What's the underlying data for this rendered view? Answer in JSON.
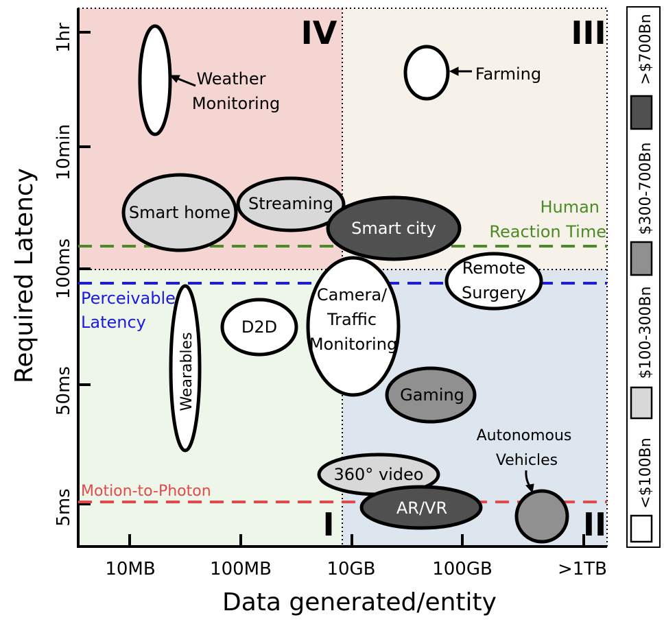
{
  "chart_data": {
    "type": "scatter",
    "xlabel": "Data generated/entity",
    "ylabel": "Required Latency",
    "x_ticks": [
      "10MB",
      "100MB",
      "10GB",
      "100GB",
      ">1TB"
    ],
    "y_ticks": [
      "1hr",
      "10min",
      "100ms",
      "50ms",
      "5ms"
    ],
    "quadrants": [
      {
        "label": "IV",
        "color": "#f4d5d2"
      },
      {
        "label": "III",
        "color": "#f6f2ea"
      },
      {
        "label": "I",
        "color": "#eef6ea"
      },
      {
        "label": "II",
        "color": "#dde5ef"
      }
    ],
    "thresholds": [
      {
        "label": "Human Reaction Time",
        "label_lines": [
          "Human",
          "Reaction Time"
        ],
        "color": "#4b8a24"
      },
      {
        "label": "Perceivable Latency",
        "label_lines": [
          "Perceivable",
          "Latency"
        ],
        "color": "#1a1ae6"
      },
      {
        "label": "Motion-to-Photon",
        "label_lines": [
          "Motion-to-Photon"
        ],
        "color": "#e04a4a"
      }
    ],
    "legend": {
      "title_position": "right",
      "items": [
        {
          "label": "<$100Bn",
          "color": "#ffffff"
        },
        {
          "label": "$100-300Bn",
          "color": "#d8d8d8"
        },
        {
          "label": "$300-700Bn",
          "color": "#909090"
        },
        {
          "label": ">$700Bn",
          "color": "#505050"
        }
      ]
    },
    "applications": [
      {
        "name": "Weather Monitoring",
        "label_lines": [
          "Weather",
          "Monitoring"
        ],
        "x": "10MB",
        "y": "1hr",
        "market": "<$100Bn"
      },
      {
        "name": "Farming",
        "label_lines": [
          "Farming"
        ],
        "x": "100GB",
        "y": "1hr",
        "market": "<$100Bn"
      },
      {
        "name": "Smart home",
        "label_lines": [
          "Smart home"
        ],
        "x": "10MB",
        "y": "10min-100ms",
        "market": "$100-300Bn"
      },
      {
        "name": "Streaming",
        "label_lines": [
          "Streaming"
        ],
        "x": "100MB",
        "y": "10min-100ms",
        "market": "$100-300Bn"
      },
      {
        "name": "Smart city",
        "label_lines": [
          "Smart city"
        ],
        "x": "10GB",
        "y": "10min-100ms",
        "market": ">$700Bn"
      },
      {
        "name": "Remote Surgery",
        "label_lines": [
          "Remote",
          "Surgery"
        ],
        "x": "100GB",
        "y": "100ms",
        "market": "<$100Bn"
      },
      {
        "name": "Camera/Traffic Monitoring",
        "label_lines": [
          "Camera/",
          "Traffic",
          "Monitoring"
        ],
        "x": "10GB",
        "y": "100ms-50ms",
        "market": "<$100Bn"
      },
      {
        "name": "D2D",
        "label_lines": [
          "D2D"
        ],
        "x": "100MB",
        "y": "100ms-50ms",
        "market": "<$100Bn"
      },
      {
        "name": "Wearables",
        "label_lines": [
          "Wearables"
        ],
        "x": "10MB-100MB",
        "y": "100ms-5ms",
        "market": "<$100Bn"
      },
      {
        "name": "Gaming",
        "label_lines": [
          "Gaming"
        ],
        "x": "100GB",
        "y": "50ms",
        "market": "$300-700Bn"
      },
      {
        "name": "360° video",
        "label_lines": [
          "360° video"
        ],
        "x": "10GB",
        "y": "5ms",
        "market": "$100-300Bn"
      },
      {
        "name": "AR/VR",
        "label_lines": [
          "AR/VR"
        ],
        "x": "10GB-100GB",
        "y": "5ms",
        "market": ">$700Bn"
      },
      {
        "name": "Autonomous Vehicles",
        "label_lines": [
          "Autonomous",
          "Vehicles"
        ],
        "x": ">1TB",
        "y": "5ms",
        "market": "$300-700Bn"
      }
    ]
  }
}
